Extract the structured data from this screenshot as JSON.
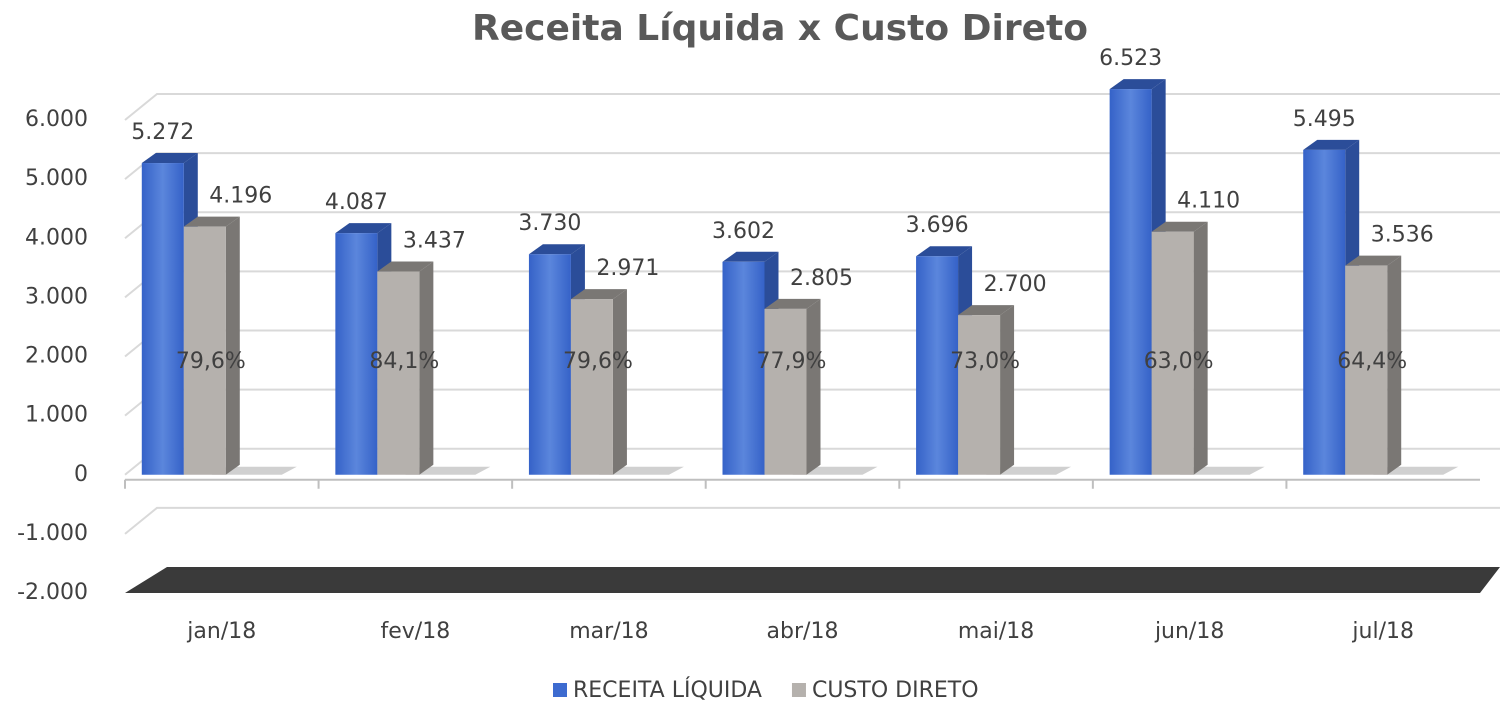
{
  "chart_data": {
    "type": "bar3d",
    "title": "Receita Líquida x Custo Direto",
    "categories": [
      "jan/18",
      "fev/18",
      "mar/18",
      "abr/18",
      "mai/18",
      "jun/18",
      "jul/18"
    ],
    "series": [
      {
        "name": "RECEITA LÍQUIDA",
        "color": "#3d6bd0",
        "values": [
          5272,
          4087,
          3730,
          3602,
          3696,
          6523,
          5495
        ],
        "value_labels": [
          "5.272",
          "4.087",
          "3.730",
          "3.602",
          "3.696",
          "6.523",
          "5.495"
        ]
      },
      {
        "name": "CUSTO DIRETO",
        "color": "#b5b1ad",
        "values": [
          4196,
          3437,
          2971,
          2805,
          2700,
          4110,
          3536
        ],
        "value_labels": [
          "4.196",
          "3.437",
          "2.971",
          "2.805",
          "2.700",
          "4.110",
          "3.536"
        ]
      }
    ],
    "annotations": [
      "79,6%",
      "84,1%",
      "79,6%",
      "77,9%",
      "73,0%",
      "63,0%",
      "64,4%"
    ],
    "ylim": [
      -2000,
      6000
    ],
    "yticks": [
      {
        "value": -2000,
        "label": "-2.000"
      },
      {
        "value": -1000,
        "label": "-1.000"
      },
      0,
      {
        "value": 1000,
        "label": "1.000"
      },
      {
        "value": 2000,
        "label": "2.000"
      },
      {
        "value": 3000,
        "label": "3.000"
      },
      {
        "value": 4000,
        "label": "4.000"
      },
      {
        "value": 5000,
        "label": "5.000"
      },
      {
        "value": 6000,
        "label": "6.000"
      }
    ],
    "grid": true,
    "legend": "bottom"
  }
}
